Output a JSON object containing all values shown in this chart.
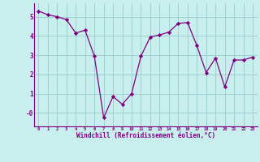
{
  "x": [
    0,
    1,
    2,
    3,
    4,
    5,
    6,
    7,
    8,
    9,
    10,
    11,
    12,
    13,
    14,
    15,
    16,
    17,
    18,
    19,
    20,
    21,
    22,
    23
  ],
  "y": [
    5.3,
    5.1,
    5.0,
    4.85,
    4.15,
    4.3,
    2.95,
    -0.25,
    0.85,
    0.45,
    1.0,
    2.95,
    3.95,
    4.05,
    4.2,
    4.65,
    4.7,
    3.5,
    2.1,
    2.85,
    1.35,
    2.75,
    2.75,
    2.9
  ],
  "line_color": "#800080",
  "marker": "D",
  "marker_size": 2.2,
  "linewidth": 0.9,
  "background_color": "#c8eeee",
  "grid_color": "#99cccc",
  "xlabel": "Windchill (Refroidissement éolien,°C)",
  "xlabel_color": "#800080",
  "tick_color": "#800080",
  "ylim": [
    -0.7,
    5.7
  ],
  "xlim": [
    -0.5,
    23.5
  ],
  "yticks": [
    0,
    1,
    2,
    3,
    4,
    5
  ],
  "ytick_labels": [
    "-0",
    "1",
    "2",
    "3",
    "4",
    "5"
  ],
  "xticks": [
    0,
    1,
    2,
    3,
    4,
    5,
    6,
    7,
    8,
    9,
    10,
    11,
    12,
    13,
    14,
    15,
    16,
    17,
    18,
    19,
    20,
    21,
    22,
    23
  ],
  "spine_color": "#800080",
  "fig_width": 3.2,
  "fig_height": 2.0,
  "dpi": 100
}
